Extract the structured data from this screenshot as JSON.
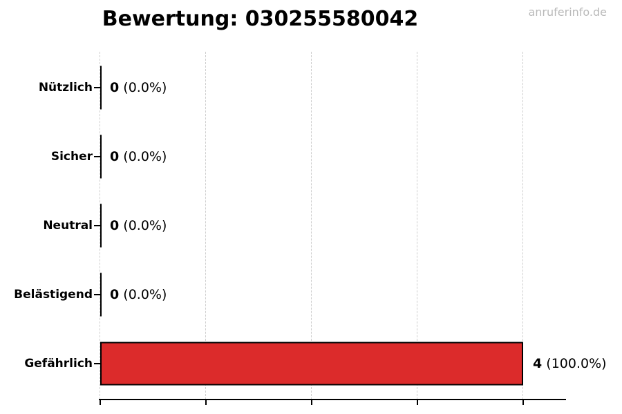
{
  "page": {
    "watermark": "anruferinfo.de"
  },
  "chart_data": {
    "type": "bar",
    "orientation": "horizontal",
    "title": "Bewertung: 030255580042",
    "categories": [
      "Nützlich",
      "Sicher",
      "Neutral",
      "Belästigend",
      "Gefährlich"
    ],
    "values": [
      0,
      0,
      0,
      0,
      4
    ],
    "value_labels": [
      "0 (0.0%)",
      "0 (0.0%)",
      "0 (0.0%)",
      "0 (0.0%)",
      "4 (100.0%)"
    ],
    "rows": [
      {
        "label": "Nützlich",
        "value": 0,
        "count_text": "0",
        "percent_text": "(0.0%)"
      },
      {
        "label": "Sicher",
        "value": 0,
        "count_text": "0",
        "percent_text": "(0.0%)"
      },
      {
        "label": "Neutral",
        "value": 0,
        "count_text": "0",
        "percent_text": "(0.0%)"
      },
      {
        "label": "Belästigend",
        "value": 0,
        "count_text": "0",
        "percent_text": "(0.0%)"
      },
      {
        "label": "Gefährlich",
        "value": 4,
        "count_text": "4",
        "percent_text": "(100.0%)"
      }
    ],
    "xlabel": "",
    "ylabel": "",
    "xlim": [
      0,
      4.4
    ],
    "x_ticks": [
      0,
      1,
      2,
      3,
      4
    ],
    "x_tick_labels_shown": false,
    "grid": true,
    "legend": false,
    "colors": {
      "bar_fill": "#dc2b2b",
      "bar_edge": "#000000",
      "grid_line": "#cdcdcd",
      "axis": "#000000",
      "text": "#000000",
      "watermark": "#b9b9b9"
    }
  }
}
